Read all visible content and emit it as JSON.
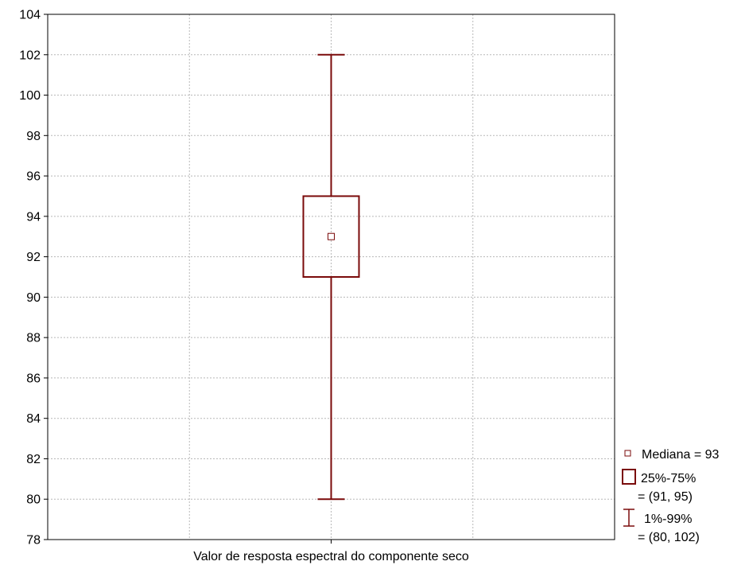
{
  "chart_data": {
    "type": "box",
    "xlabel": "Valor de resposta espectral do componente seco",
    "ylim": [
      78,
      104
    ],
    "yticks": [
      78,
      80,
      82,
      84,
      86,
      88,
      90,
      92,
      94,
      96,
      98,
      100,
      102,
      104
    ],
    "grid": true,
    "legend_position": "right",
    "colors": {
      "box": "#7a0a0a",
      "grid": "#b8b8b8",
      "frame": "#000000"
    },
    "series": [
      {
        "median": 93,
        "q1": 91,
        "q3": 95,
        "whisker_low": 80,
        "whisker_high": 102
      }
    ],
    "legend": [
      {
        "symbol": "median",
        "label": "Mediana = 93"
      },
      {
        "symbol": "box",
        "label": "25%-75%",
        "sublabel": "= (91, 95)"
      },
      {
        "symbol": "whisker",
        "label": "1%-99%",
        "sublabel": "= (80, 102)"
      }
    ]
  }
}
